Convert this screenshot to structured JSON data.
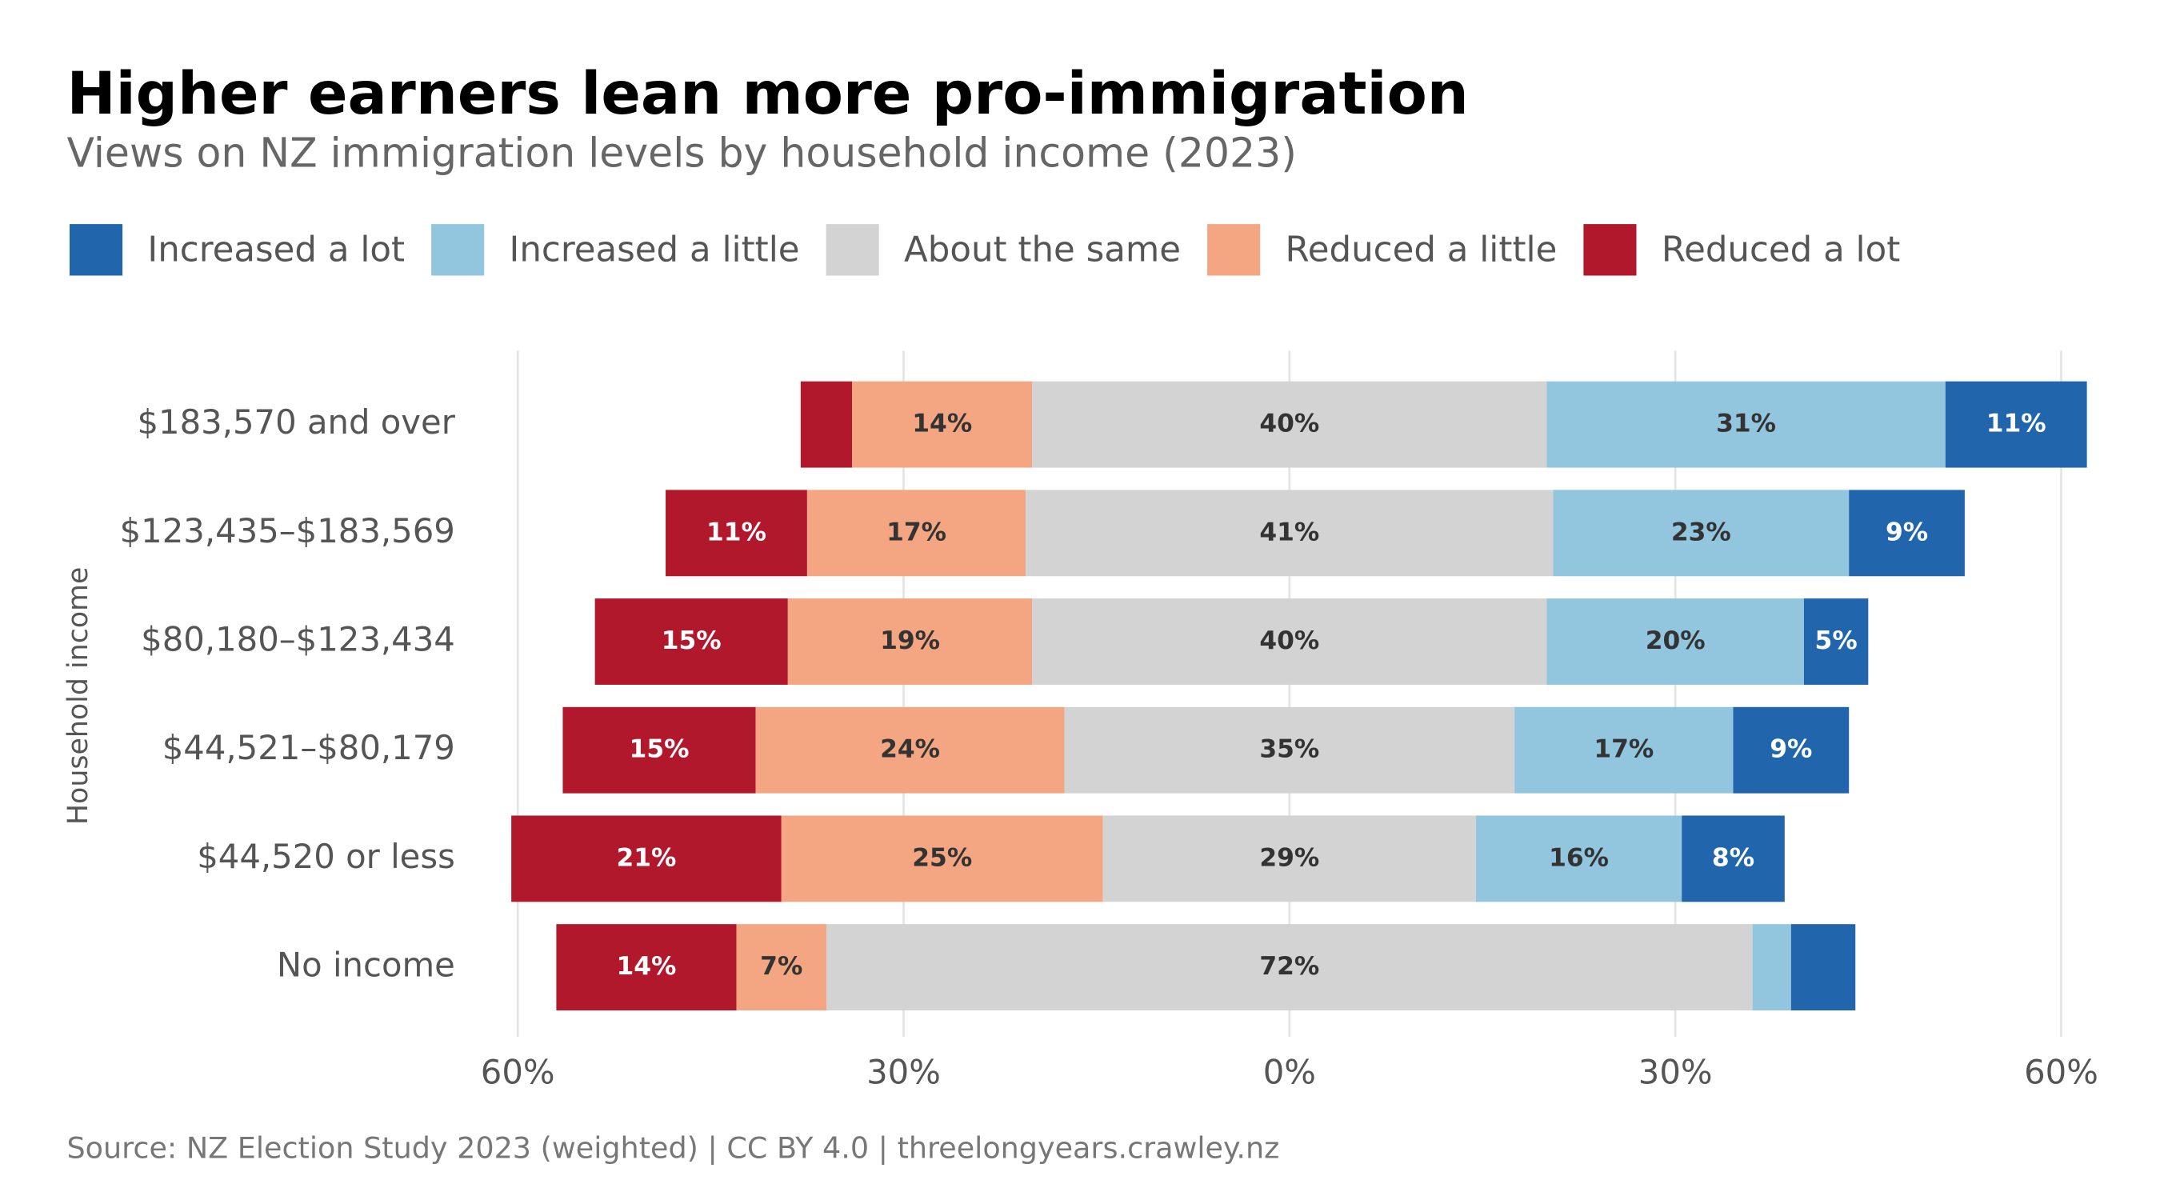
{
  "chart_data": {
    "type": "diverging-bar",
    "title": "Higher earners lean more pro-immigration",
    "subtitle": "Views on NZ immigration levels by household income (2023)",
    "y_label": "Household income",
    "source": "Source: NZ Election Study 2023 (weighted) | CC BY 4.0 | threelongyears.crawley.nz",
    "categories": [
      "$183,570 and over",
      "$123,435–$183,569",
      "$80,180–$123,434",
      "$44,521–$80,179",
      "$44,520 or less",
      "No income"
    ],
    "series": [
      {
        "name": "Increased a lot",
        "color": "#2166ac",
        "values": [
          11,
          9,
          5,
          9,
          8,
          5
        ],
        "value_labels": [
          "11%",
          "9%",
          "5%",
          "9%",
          "8%",
          null
        ]
      },
      {
        "name": "Increased a little",
        "color": "#92c5de",
        "values": [
          31,
          23,
          20,
          17,
          16,
          3
        ],
        "value_labels": [
          "31%",
          "23%",
          "20%",
          "17%",
          "16%",
          null
        ]
      },
      {
        "name": "About the same",
        "color": "#d3d3d3",
        "values": [
          40,
          41,
          40,
          35,
          29,
          72
        ],
        "value_labels": [
          "40%",
          "41%",
          "40%",
          "35%",
          "29%",
          "72%"
        ]
      },
      {
        "name": "Reduced a little",
        "color": "#f4a582",
        "values": [
          14,
          17,
          19,
          24,
          25,
          7
        ],
        "value_labels": [
          "14%",
          "17%",
          "19%",
          "24%",
          "25%",
          "7%"
        ]
      },
      {
        "name": "Reduced a lot",
        "color": "#b2182b",
        "values": [
          4,
          11,
          15,
          15,
          21,
          14
        ],
        "value_labels": [
          null,
          "11%",
          "15%",
          "15%",
          "21%",
          "14%"
        ]
      }
    ],
    "xlim": [
      -60,
      60
    ],
    "xticks": [
      {
        "value": -60,
        "label": "60%"
      },
      {
        "value": -30,
        "label": "30%"
      },
      {
        "value": 0,
        "label": "0%"
      },
      {
        "value": 30,
        "label": "30%"
      },
      {
        "value": 60,
        "label": "60%"
      }
    ],
    "grid": true
  }
}
